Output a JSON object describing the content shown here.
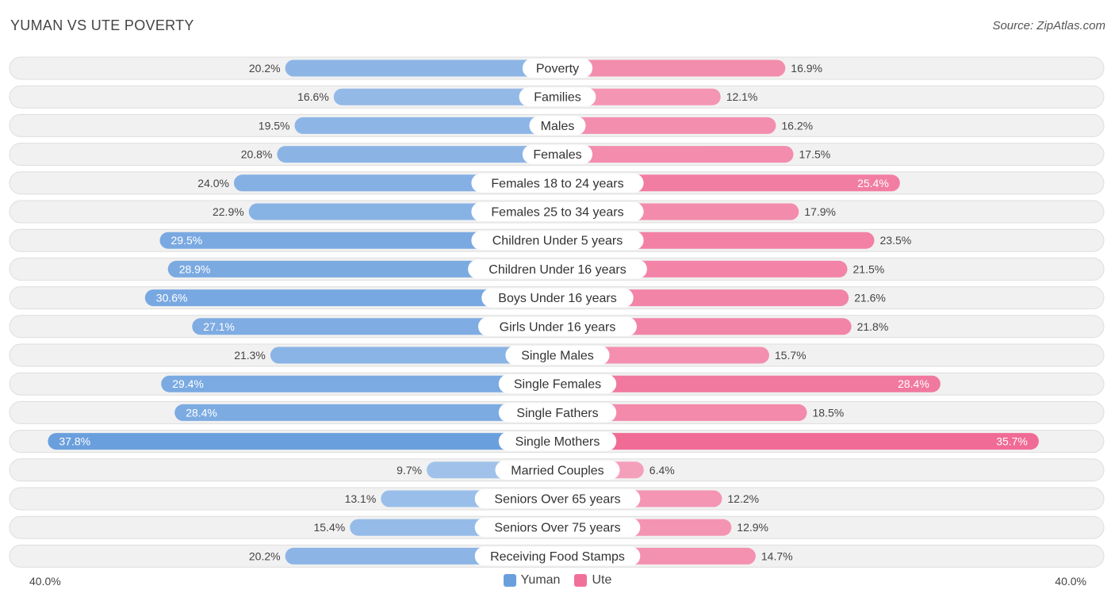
{
  "header": {
    "title": "YUMAN VS UTE POVERTY",
    "source": "Source: ZipAtlas.com"
  },
  "axis": {
    "left_label": "40.0%",
    "right_label": "40.0%"
  },
  "legend": [
    {
      "name": "Yuman",
      "color": "#6a9fdd"
    },
    {
      "name": "Ute",
      "color": "#f07099"
    }
  ],
  "chart_data": {
    "type": "bar",
    "orientation": "horizontal-diverging",
    "title": "YUMAN VS UTE POVERTY",
    "xlim": [
      0,
      40
    ],
    "categories": [
      "Poverty",
      "Families",
      "Males",
      "Females",
      "Females 18 to 24 years",
      "Females 25 to 34 years",
      "Children Under 5 years",
      "Children Under 16 years",
      "Boys Under 16 years",
      "Girls Under 16 years",
      "Single Males",
      "Single Females",
      "Single Fathers",
      "Single Mothers",
      "Married Couples",
      "Seniors Over 65 years",
      "Seniors Over 75 years",
      "Receiving Food Stamps"
    ],
    "series": [
      {
        "name": "Yuman",
        "side": "left",
        "values": [
          20.2,
          16.6,
          19.5,
          20.8,
          24.0,
          22.9,
          29.5,
          28.9,
          30.6,
          27.1,
          21.3,
          29.4,
          28.4,
          37.8,
          9.7,
          13.1,
          15.4,
          20.2
        ],
        "labels": [
          "20.2%",
          "16.6%",
          "19.5%",
          "20.8%",
          "24.0%",
          "22.9%",
          "29.5%",
          "28.9%",
          "30.6%",
          "27.1%",
          "21.3%",
          "29.4%",
          "28.4%",
          "37.8%",
          "9.7%",
          "13.1%",
          "15.4%",
          "20.2%"
        ]
      },
      {
        "name": "Ute",
        "side": "right",
        "values": [
          16.9,
          12.1,
          16.2,
          17.5,
          25.4,
          17.9,
          23.5,
          21.5,
          21.6,
          21.8,
          15.7,
          28.4,
          18.5,
          35.7,
          6.4,
          12.2,
          12.9,
          14.7
        ],
        "labels": [
          "16.9%",
          "12.1%",
          "16.2%",
          "17.5%",
          "25.4%",
          "17.9%",
          "23.5%",
          "21.5%",
          "21.6%",
          "21.8%",
          "15.7%",
          "28.4%",
          "18.5%",
          "35.7%",
          "6.4%",
          "12.2%",
          "12.9%",
          "14.7%"
        ]
      }
    ]
  }
}
